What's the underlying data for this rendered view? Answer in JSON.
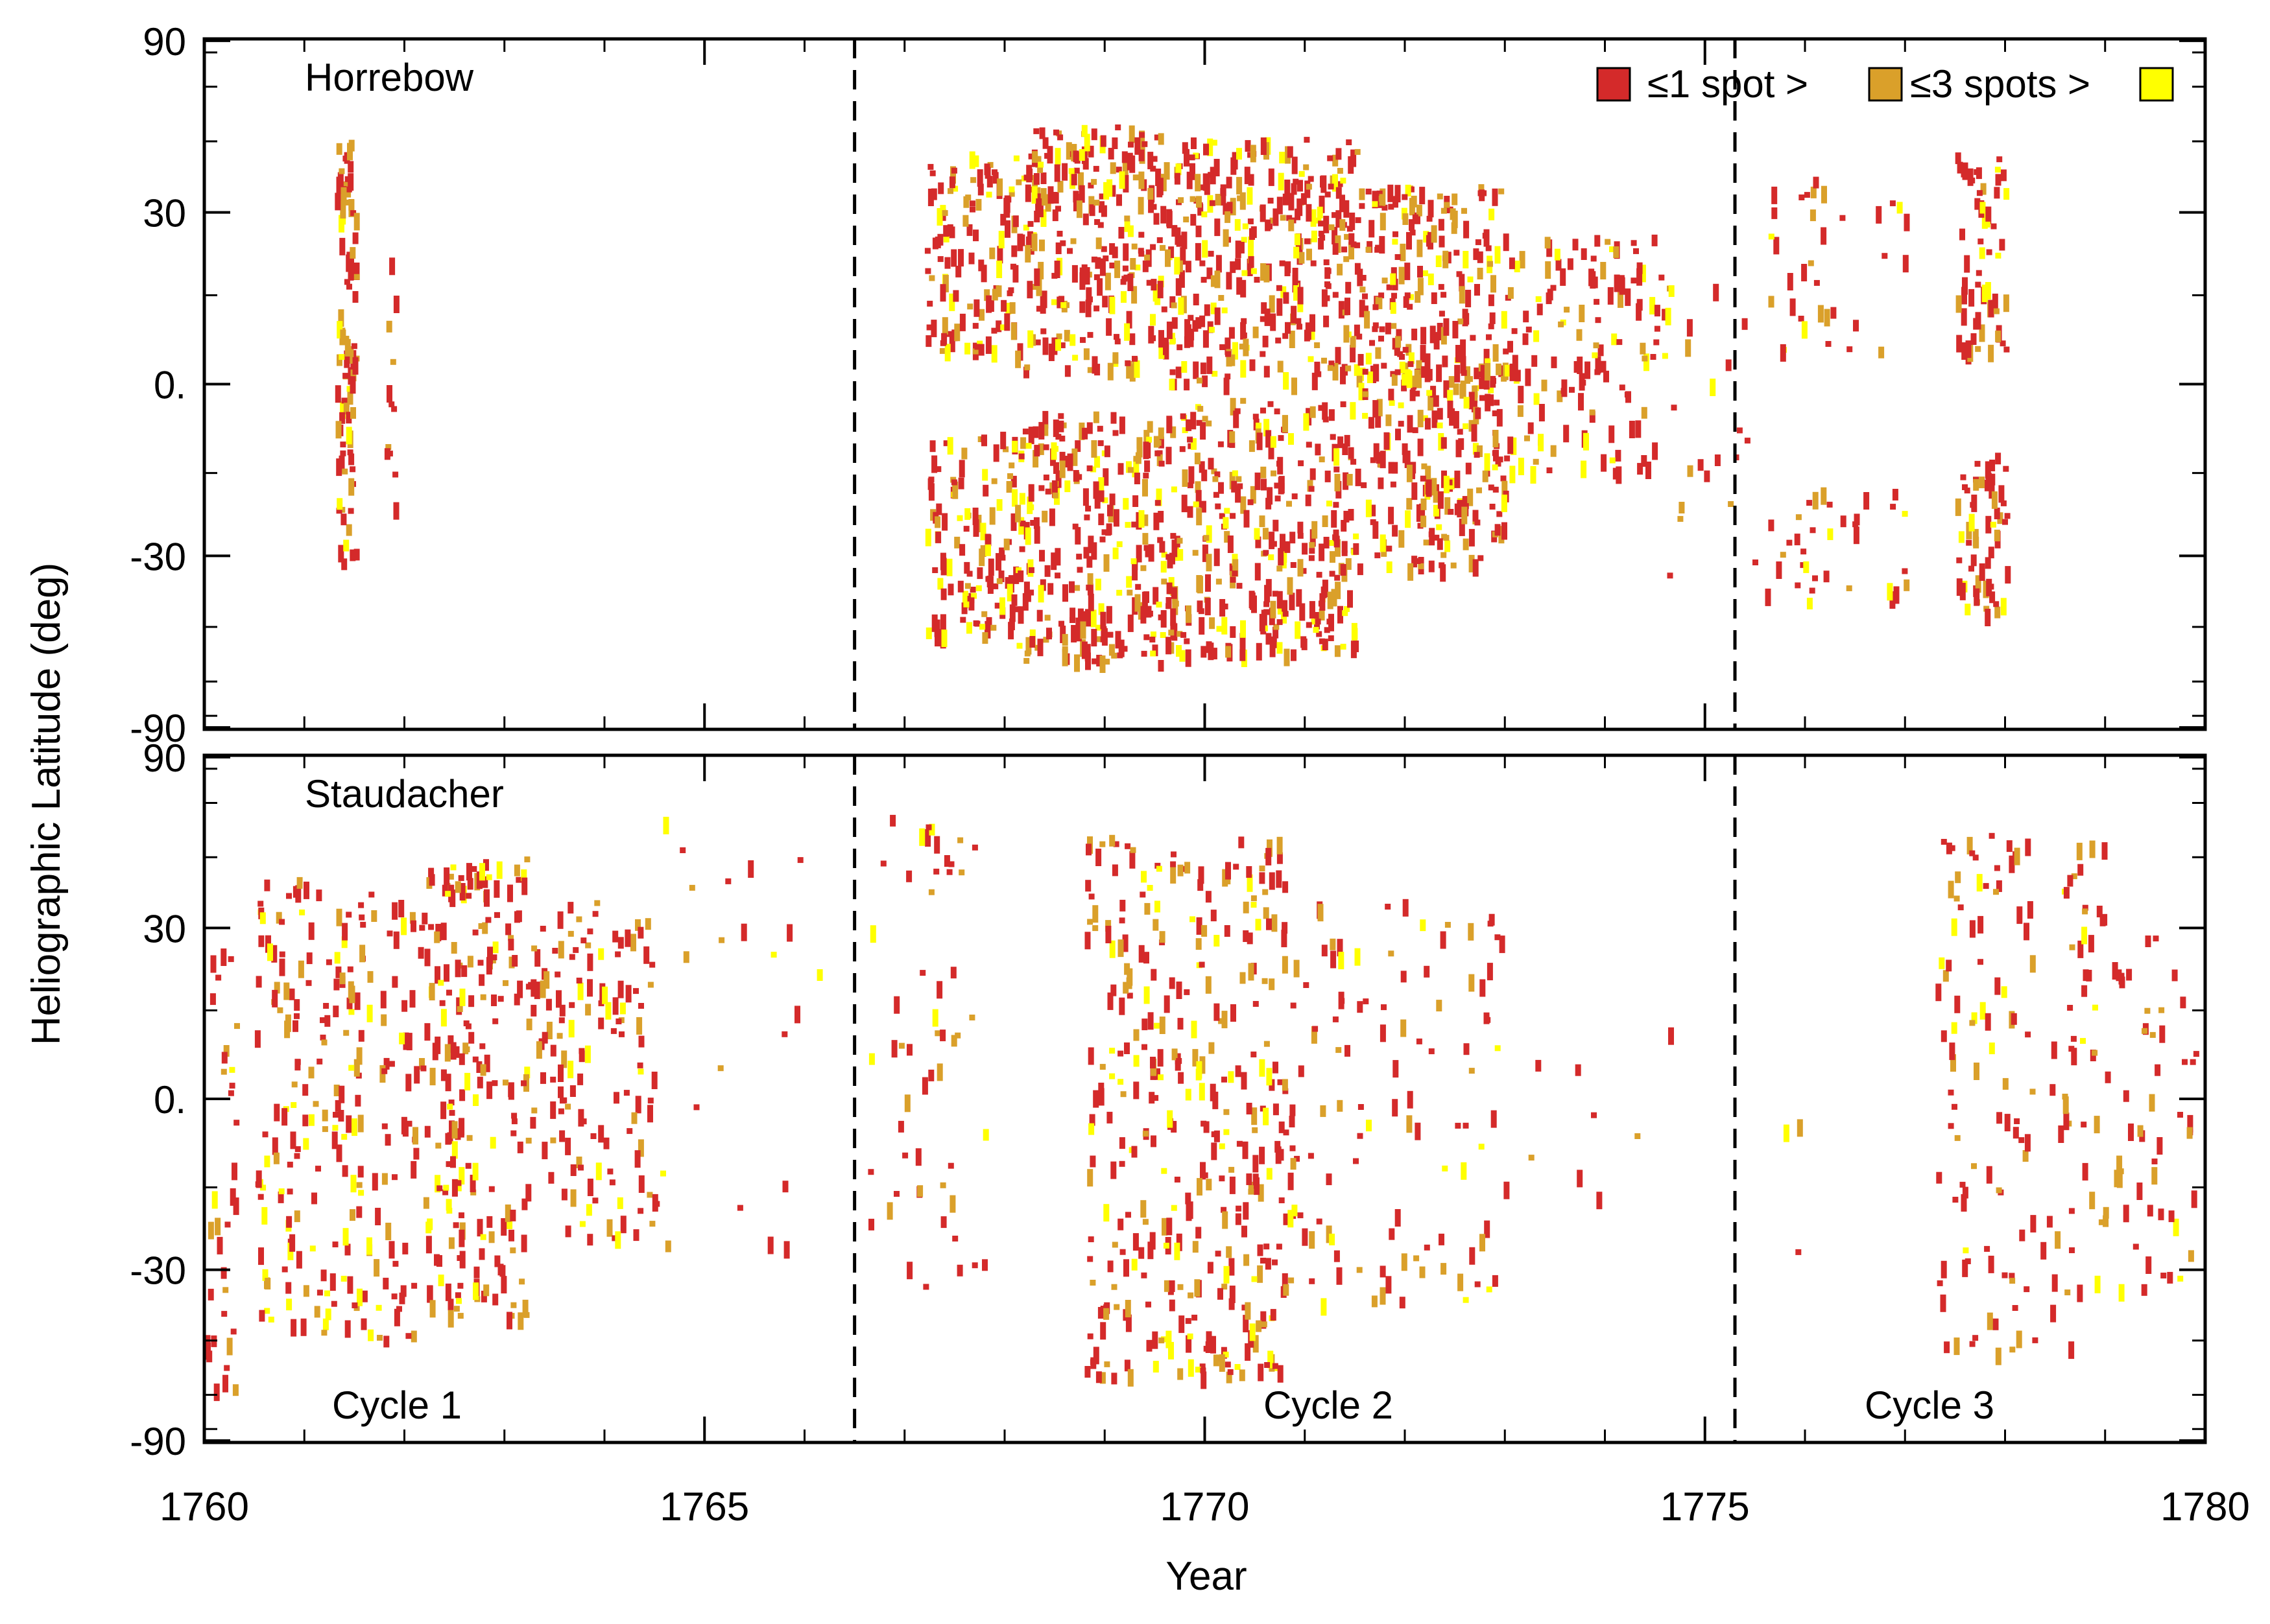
{
  "chart_data": {
    "type": "scatter",
    "subtype": "butterfly-diagram",
    "shared_axes": {
      "xlabel": "Year",
      "ylabel": "Heliographic Latitude (deg)",
      "xlim": [
        1760,
        1780
      ],
      "x_ticks": [
        1760,
        1765,
        1770,
        1775,
        1780
      ],
      "x_tick_labels": [
        "1760",
        "1765",
        "1770",
        "1775",
        "1780"
      ],
      "y_tick_labels": [
        "90",
        "30",
        "0.",
        "-30",
        "-90"
      ],
      "y_scale": "sine-of-latitude",
      "cycle_boundaries": [
        1766.5,
        1775.3
      ],
      "cycle_boundary_style": "dashed"
    },
    "legend": {
      "position": "top-right",
      "items": [
        {
          "swatch_color": "#d42a2a",
          "label": "≤1 spot >"
        },
        {
          "swatch_color": "#daa02a",
          "label": "≤3 spots >"
        },
        {
          "swatch_color": "#ffff00",
          "label": ""
        }
      ]
    },
    "color_classes": {
      "le1": "#d42a2a",
      "le3": "#daa02a",
      "gt3": "#ffff00"
    },
    "panels": [
      {
        "observer": "Horrebow",
        "cycle_labels": [],
        "spot_clusters": [
          {
            "x": [
              1761.3,
              1761.5
            ],
            "lat": [
              -32,
              45
            ],
            "n": 90
          },
          {
            "x": [
              1761.8,
              1761.9
            ],
            "lat": [
              -25,
              25
            ],
            "n": 12
          },
          {
            "x": [
              1767.2,
              1768.1
            ],
            "lat": [
              5,
              42
            ],
            "n": 120
          },
          {
            "x": [
              1767.2,
              1768.1
            ],
            "lat": [
              -48,
              -8
            ],
            "n": 120
          },
          {
            "x": [
              1768.1,
              1769.6
            ],
            "lat": [
              2,
              48
            ],
            "n": 260
          },
          {
            "x": [
              1768.1,
              1769.6
            ],
            "lat": [
              -55,
              -5
            ],
            "n": 260
          },
          {
            "x": [
              1769.6,
              1771.5
            ],
            "lat": [
              0,
              45
            ],
            "n": 330
          },
          {
            "x": [
              1769.6,
              1771.5
            ],
            "lat": [
              -52,
              -3
            ],
            "n": 330
          },
          {
            "x": [
              1771.5,
              1773.0
            ],
            "lat": [
              -3,
              35
            ],
            "n": 220
          },
          {
            "x": [
              1771.5,
              1773.0
            ],
            "lat": [
              -33,
              3
            ],
            "n": 200
          },
          {
            "x": [
              1773.0,
              1774.5
            ],
            "lat": [
              -15,
              25
            ],
            "n": 130
          },
          {
            "x": [
              1774.5,
              1775.5
            ],
            "lat": [
              -35,
              20
            ],
            "n": 25
          },
          {
            "x": [
              1775.6,
              1777.0
            ],
            "lat": [
              5,
              38
            ],
            "n": 35
          },
          {
            "x": [
              1775.6,
              1777.0
            ],
            "lat": [
              -40,
              -18
            ],
            "n": 35
          },
          {
            "x": [
              1777.5,
              1778.0
            ],
            "lat": [
              5,
              42
            ],
            "n": 60
          },
          {
            "x": [
              1777.5,
              1778.0
            ],
            "lat": [
              -42,
              -12
            ],
            "n": 60
          }
        ]
      },
      {
        "observer": "Staudacher",
        "cycle_labels": [
          "Cycle 1",
          "Cycle 2",
          "Cycle 3"
        ],
        "spot_clusters": [
          {
            "x": [
              1760.0,
              1760.3
            ],
            "lat": [
              -60,
              28
            ],
            "n": 35
          },
          {
            "x": [
              1760.5,
              1762.2
            ],
            "lat": [
              -45,
              40
            ],
            "n": 230
          },
          {
            "x": [
              1762.2,
              1763.2
            ],
            "lat": [
              -40,
              45
            ],
            "n": 210
          },
          {
            "x": [
              1763.2,
              1764.5
            ],
            "lat": [
              -25,
              35
            ],
            "n": 140
          },
          {
            "x": [
              1764.5,
              1766.3
            ],
            "lat": [
              -30,
              60
            ],
            "n": 22
          },
          {
            "x": [
              1766.6,
              1767.8
            ],
            "lat": [
              -35,
              55
            ],
            "n": 55
          },
          {
            "x": [
              1768.8,
              1770.8
            ],
            "lat": [
              -55,
              50
            ],
            "n": 360
          },
          {
            "x": [
              1770.8,
              1773.0
            ],
            "lat": [
              -38,
              35
            ],
            "n": 110
          },
          {
            "x": [
              1773.0,
              1775.3
            ],
            "lat": [
              -20,
              15
            ],
            "n": 8
          },
          {
            "x": [
              1775.5,
              1776.0
            ],
            "lat": [
              -60,
              10
            ],
            "n": 3
          },
          {
            "x": [
              1777.3,
              1779.0
            ],
            "lat": [
              -48,
              50
            ],
            "n": 150
          },
          {
            "x": [
              1779.0,
              1779.9
            ],
            "lat": [
              -35,
              32
            ],
            "n": 50
          }
        ]
      }
    ]
  }
}
